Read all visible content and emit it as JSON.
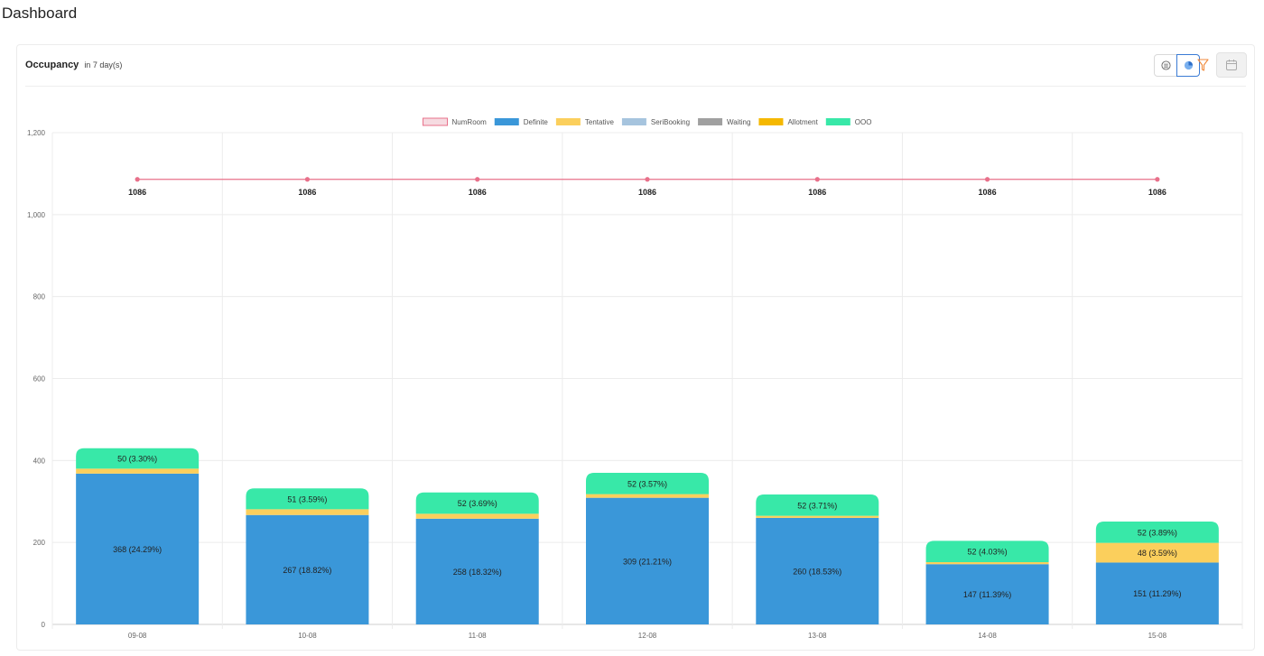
{
  "page": {
    "title": "Dashboard"
  },
  "card": {
    "title": "Occupancy",
    "subtitle": "in 7 day(s)",
    "toolbar": [
      {
        "name": "table-view-icon",
        "active": false
      },
      {
        "name": "pie-chart-view-icon",
        "active": true
      },
      {
        "name": "filter-funnel-icon",
        "active": false
      },
      {
        "name": "calendar-icon",
        "active": false
      }
    ]
  },
  "colors": {
    "NumRoom": "#e8708a",
    "Definite": "#3a97d9",
    "Tentative": "#fbcf5c",
    "SeriBooking": "#a6c4de",
    "Waiting": "#a0a0a0",
    "Allotment": "#f5b800",
    "OOO": "#38e8a8"
  },
  "chart_data": {
    "type": "bar",
    "stacked": true,
    "categories": [
      "09-08",
      "10-08",
      "11-08",
      "12-08",
      "13-08",
      "14-08",
      "15-08"
    ],
    "ylim": [
      0,
      1200
    ],
    "yticks": [
      "0",
      "200",
      "400",
      "600",
      "800",
      "1,000",
      "1,200"
    ],
    "grid": true,
    "legend_position": "top",
    "legend": [
      "NumRoom",
      "Definite",
      "Tentative",
      "SeriBooking",
      "Waiting",
      "Allotment",
      "OOO"
    ],
    "line_series": {
      "name": "NumRoom",
      "values": [
        1086,
        1086,
        1086,
        1086,
        1086,
        1086,
        1086
      ],
      "labels": [
        "1086",
        "1086",
        "1086",
        "1086",
        "1086",
        "1086",
        "1086"
      ]
    },
    "series": [
      {
        "name": "Definite",
        "values": [
          368,
          267,
          258,
          309,
          260,
          147,
          151
        ],
        "labels": [
          "368 (24.29%)",
          "267 (18.82%)",
          "258 (18.32%)",
          "309 (21.21%)",
          "260 (18.53%)",
          "147 (11.39%)",
          "151 (11.29%)"
        ]
      },
      {
        "name": "Tentative",
        "values": [
          12,
          14,
          12,
          9,
          5,
          5,
          48
        ],
        "labels": [
          "",
          "",
          "",
          "",
          "",
          "",
          "48 (3.59%)"
        ]
      },
      {
        "name": "SeriBooking",
        "values": [
          0,
          0,
          0,
          0,
          0,
          0,
          0
        ],
        "labels": [
          "",
          "",
          "",
          "",
          "",
          "",
          ""
        ]
      },
      {
        "name": "Waiting",
        "values": [
          0,
          0,
          0,
          0,
          0,
          0,
          0
        ],
        "labels": [
          "",
          "",
          "",
          "",
          "",
          "",
          ""
        ]
      },
      {
        "name": "Allotment",
        "values": [
          0,
          0,
          0,
          0,
          0,
          0,
          0
        ],
        "labels": [
          "",
          "",
          "",
          "",
          "",
          "",
          ""
        ]
      },
      {
        "name": "OOO",
        "values": [
          50,
          51,
          52,
          52,
          52,
          52,
          52
        ],
        "labels": [
          "50 (3.30%)",
          "51 (3.59%)",
          "52 (3.69%)",
          "52 (3.57%)",
          "52 (3.71%)",
          "52 (4.03%)",
          "52 (3.89%)"
        ]
      }
    ]
  }
}
